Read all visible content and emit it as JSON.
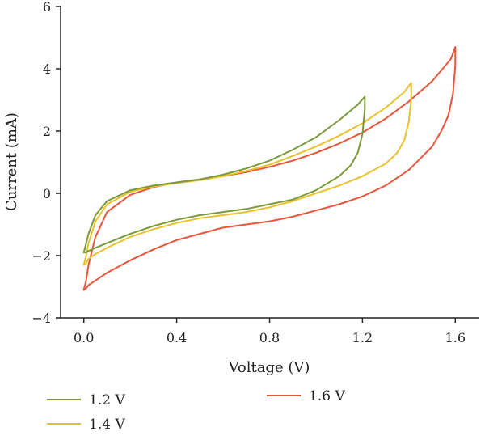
{
  "chart_data": {
    "type": "line",
    "xlabel": "Voltage (V)",
    "ylabel": "Current (mA)",
    "xlim": [
      -0.1,
      1.7
    ],
    "ylim": [
      -4,
      6
    ],
    "xticks": [
      0.0,
      0.4,
      0.8,
      1.2,
      1.6
    ],
    "xtick_labels": [
      "0.0",
      "0.4",
      "0.8",
      "1.2",
      "1.6"
    ],
    "yticks": [
      -4,
      -2,
      0,
      2,
      4,
      6
    ],
    "ytick_labels": [
      "−4",
      "−2",
      "0",
      "2",
      "4",
      "6"
    ],
    "grid": false,
    "legend_position": "bottom",
    "series": [
      {
        "name": "1.2 V",
        "color": "#7a9a3a",
        "x": [
          0.0,
          0.01,
          0.02,
          0.05,
          0.1,
          0.2,
          0.3,
          0.4,
          0.5,
          0.6,
          0.7,
          0.8,
          0.9,
          1.0,
          1.1,
          1.18,
          1.21,
          1.21,
          1.2,
          1.18,
          1.15,
          1.1,
          1.0,
          0.9,
          0.8,
          0.7,
          0.6,
          0.5,
          0.4,
          0.3,
          0.2,
          0.1,
          0.05,
          0.02,
          0.01,
          0.0
        ],
        "y": [
          -1.9,
          -1.6,
          -1.3,
          -0.7,
          -0.25,
          0.1,
          0.25,
          0.35,
          0.45,
          0.6,
          0.8,
          1.05,
          1.4,
          1.8,
          2.35,
          2.85,
          3.1,
          2.7,
          1.9,
          1.3,
          0.9,
          0.55,
          0.1,
          -0.2,
          -0.35,
          -0.5,
          -0.6,
          -0.7,
          -0.85,
          -1.05,
          -1.3,
          -1.6,
          -1.75,
          -1.85,
          -1.9,
          -1.9
        ]
      },
      {
        "name": "1.4 V",
        "color": "#e8c22c",
        "x": [
          0.0,
          0.01,
          0.02,
          0.05,
          0.1,
          0.2,
          0.3,
          0.4,
          0.5,
          0.6,
          0.7,
          0.8,
          0.9,
          1.0,
          1.1,
          1.2,
          1.3,
          1.38,
          1.41,
          1.41,
          1.4,
          1.38,
          1.35,
          1.3,
          1.2,
          1.1,
          1.0,
          0.9,
          0.8,
          0.7,
          0.6,
          0.5,
          0.4,
          0.3,
          0.2,
          0.1,
          0.05,
          0.02,
          0.01,
          0.0
        ],
        "y": [
          -2.3,
          -2.0,
          -1.6,
          -0.9,
          -0.35,
          0.05,
          0.22,
          0.33,
          0.42,
          0.55,
          0.72,
          0.92,
          1.2,
          1.5,
          1.85,
          2.25,
          2.75,
          3.25,
          3.55,
          3.0,
          2.3,
          1.7,
          1.3,
          0.95,
          0.55,
          0.25,
          0.0,
          -0.25,
          -0.45,
          -0.6,
          -0.7,
          -0.8,
          -0.95,
          -1.15,
          -1.4,
          -1.75,
          -1.95,
          -2.1,
          -2.25,
          -2.3
        ]
      },
      {
        "name": "1.6 V",
        "color": "#e8553a",
        "x": [
          0.0,
          0.01,
          0.02,
          0.05,
          0.1,
          0.2,
          0.3,
          0.4,
          0.5,
          0.6,
          0.7,
          0.8,
          0.9,
          1.0,
          1.1,
          1.2,
          1.3,
          1.4,
          1.5,
          1.58,
          1.6,
          1.6,
          1.59,
          1.57,
          1.54,
          1.5,
          1.4,
          1.3,
          1.2,
          1.1,
          1.0,
          0.9,
          0.8,
          0.7,
          0.6,
          0.5,
          0.4,
          0.3,
          0.2,
          0.1,
          0.05,
          0.02,
          0.01,
          0.0
        ],
        "y": [
          -3.1,
          -2.8,
          -2.3,
          -1.4,
          -0.6,
          -0.05,
          0.2,
          0.35,
          0.45,
          0.55,
          0.68,
          0.85,
          1.05,
          1.3,
          1.6,
          1.95,
          2.4,
          2.95,
          3.6,
          4.3,
          4.7,
          4.1,
          3.2,
          2.5,
          2.0,
          1.5,
          0.75,
          0.25,
          -0.1,
          -0.35,
          -0.55,
          -0.75,
          -0.9,
          -1.0,
          -1.1,
          -1.3,
          -1.5,
          -1.8,
          -2.15,
          -2.55,
          -2.8,
          -2.95,
          -3.05,
          -3.1
        ]
      }
    ]
  }
}
